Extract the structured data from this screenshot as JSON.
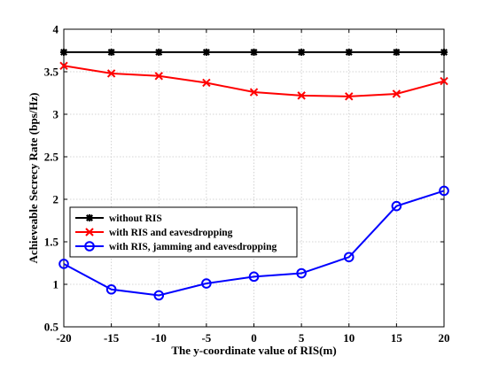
{
  "chart_data": {
    "type": "line",
    "title": "",
    "xlabel": "The y-coordinate value of RIS(m)",
    "ylabel": "Achieveable Secrecy Rate (bps/Hz)",
    "xlim": [
      -20,
      20
    ],
    "ylim": [
      0.5,
      4
    ],
    "xticks": [
      -20,
      -15,
      -10,
      -5,
      0,
      5,
      10,
      15,
      20
    ],
    "yticks": [
      0.5,
      1,
      1.5,
      2,
      2.5,
      3,
      3.5,
      4
    ],
    "grid": true,
    "legend_position": "lower-left",
    "x": [
      -20,
      -15,
      -10,
      -5,
      0,
      5,
      10,
      15,
      20
    ],
    "series": [
      {
        "name": "without RIS",
        "color": "#000000",
        "marker": "asterisk",
        "values": [
          3.73,
          3.73,
          3.73,
          3.73,
          3.73,
          3.73,
          3.73,
          3.73,
          3.73
        ]
      },
      {
        "name": "with RIS and eavesdropping",
        "color": "#ff0000",
        "marker": "x",
        "values": [
          3.57,
          3.48,
          3.45,
          3.37,
          3.26,
          3.22,
          3.21,
          3.24,
          3.39
        ]
      },
      {
        "name": "with RIS, jamming and eavesdropping",
        "color": "#0000ff",
        "marker": "circle",
        "values": [
          1.24,
          0.94,
          0.87,
          1.01,
          1.09,
          1.13,
          1.32,
          1.92,
          2.1
        ]
      }
    ]
  }
}
